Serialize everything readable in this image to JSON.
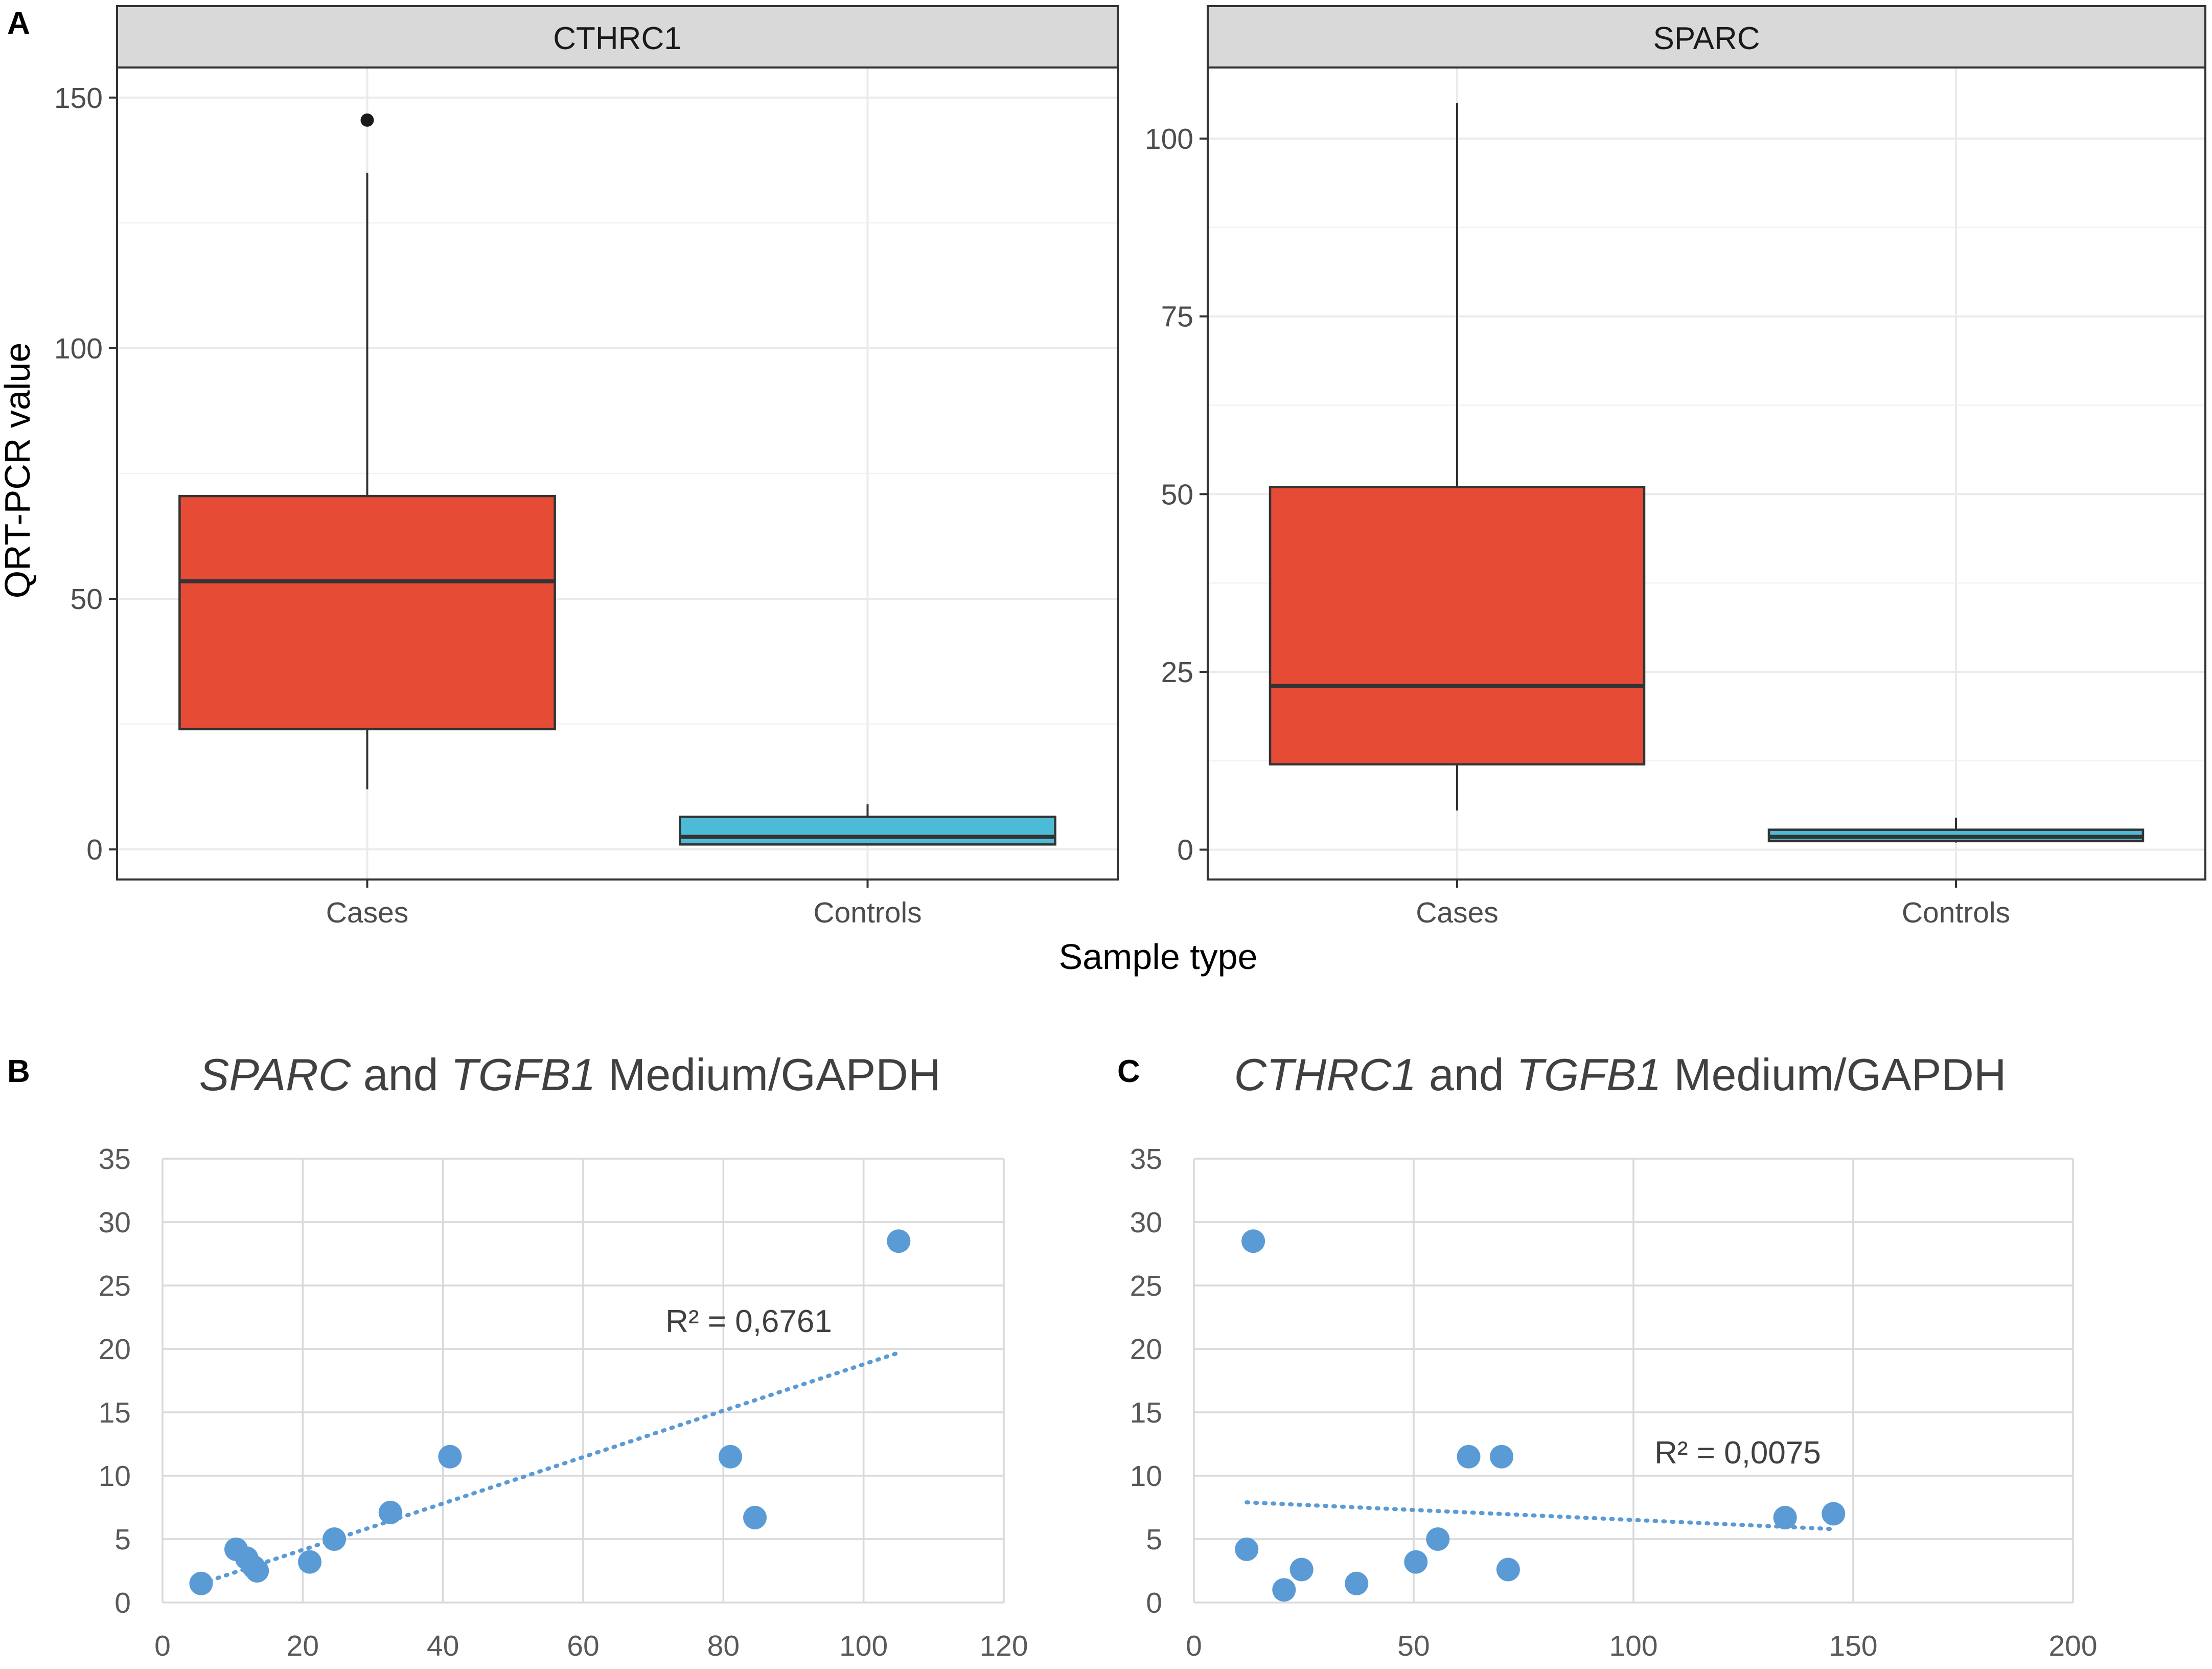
{
  "panel_letters": {
    "a": "A",
    "b": "B",
    "c": "C"
  },
  "colors": {
    "cases": "#e64b35",
    "controls": "#4dbbd5",
    "scatter": "#5b9bd5"
  },
  "chart_data": [
    {
      "type": "box",
      "panel": "A",
      "facet": "CTHRC1",
      "categories": [
        "Cases",
        "Controls"
      ],
      "ylabel": "QRT-PCR value",
      "xlabel": "Sample type",
      "ylim": [
        -6,
        156
      ],
      "yticks": [
        0,
        50,
        100,
        150
      ],
      "boxes": [
        {
          "category": "Cases",
          "whisker_low": 12,
          "q1": 24,
          "median": 53.5,
          "q3": 70.5,
          "whisker_high": 135,
          "outliers": [
            145.5
          ]
        },
        {
          "category": "Controls",
          "whisker_low": 1,
          "q1": 1,
          "median": 2.5,
          "q3": 6.5,
          "whisker_high": 9,
          "outliers": []
        }
      ]
    },
    {
      "type": "box",
      "panel": "A",
      "facet": "SPARC",
      "categories": [
        "Cases",
        "Controls"
      ],
      "ylim": [
        -4.2,
        110
      ],
      "yticks": [
        0,
        25,
        50,
        75,
        100
      ],
      "boxes": [
        {
          "category": "Cases",
          "whisker_low": 5.5,
          "q1": 12,
          "median": 23,
          "q3": 51,
          "whisker_high": 105,
          "outliers": []
        },
        {
          "category": "Controls",
          "whisker_low": 1,
          "q1": 1.2,
          "median": 1.8,
          "q3": 2.8,
          "whisker_high": 4.5,
          "outliers": []
        }
      ]
    },
    {
      "type": "scatter",
      "panel": "B",
      "title": {
        "gene1": "SPARC",
        "and": " and ",
        "gene2": "TGFB1",
        "rest": " Medium/GAPDH"
      },
      "xlim": [
        0,
        120
      ],
      "ylim": [
        0,
        35
      ],
      "xticks": [
        0,
        20,
        40,
        60,
        80,
        100,
        120
      ],
      "yticks": [
        0,
        5,
        10,
        15,
        20,
        25,
        30,
        35
      ],
      "x": [
        5.5,
        10.5,
        12,
        13,
        13.5,
        21,
        24.5,
        32.5,
        41,
        81,
        84.5,
        105
      ],
      "y": [
        1.5,
        4.2,
        3.5,
        2.8,
        2.5,
        3.2,
        5.0,
        7.1,
        11.5,
        11.5,
        6.7,
        28.5
      ],
      "trendline": {
        "x": [
          5.5,
          105
        ],
        "y": [
          1.5,
          19.7
        ]
      },
      "r2_label": "R² = 0,6761"
    },
    {
      "type": "scatter",
      "panel": "C",
      "title": {
        "gene1": "CTHRC1",
        "and": " and ",
        "gene2": "TGFB1",
        "rest": " Medium/GAPDH"
      },
      "xlim": [
        0,
        200
      ],
      "ylim": [
        0,
        35
      ],
      "xticks": [
        0,
        50,
        100,
        150,
        200
      ],
      "yticks": [
        0,
        5,
        10,
        15,
        20,
        25,
        30,
        35
      ],
      "x": [
        12,
        13.5,
        20.5,
        24.5,
        37,
        50.5,
        55.5,
        62.5,
        70,
        71.5,
        134.5,
        145.5
      ],
      "y": [
        4.2,
        28.5,
        1.0,
        2.6,
        1.5,
        3.2,
        5.0,
        11.5,
        11.5,
        2.6,
        6.7,
        7.0
      ],
      "trendline": {
        "x": [
          12,
          145
        ],
        "y": [
          7.9,
          5.8
        ]
      },
      "r2_label": "R² = 0,0075"
    }
  ]
}
